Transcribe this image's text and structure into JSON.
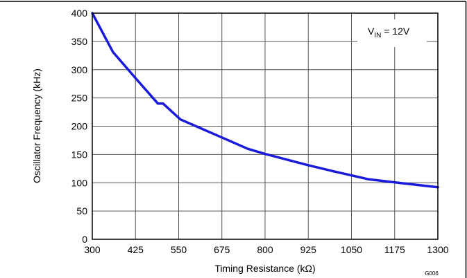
{
  "chart_data": {
    "type": "line",
    "xlabel": "Timing Resistance (kΩ)",
    "ylabel": "Oscillator Frequency (kHz)",
    "xlim": [
      300,
      1300
    ],
    "ylim": [
      0,
      400
    ],
    "x_ticks": [
      300,
      425,
      550,
      675,
      800,
      925,
      1050,
      1175,
      1300
    ],
    "y_ticks": [
      0,
      50,
      100,
      150,
      200,
      250,
      300,
      350,
      400
    ],
    "grid": true,
    "annotation": {
      "base": "V",
      "sub": "IN",
      "rest": " = 12V"
    },
    "figure_id": "G006",
    "series": [
      {
        "color": "#1a1adb",
        "x": [
          300,
          360,
          425,
          490,
          497,
          505,
          555,
          600,
          675,
          750,
          800,
          925,
          1000,
          1100,
          1200,
          1300
        ],
        "y": [
          400,
          331,
          285,
          240,
          240,
          240,
          212,
          200,
          180,
          160,
          151,
          131,
          120,
          106,
          99,
          92
        ]
      }
    ]
  }
}
